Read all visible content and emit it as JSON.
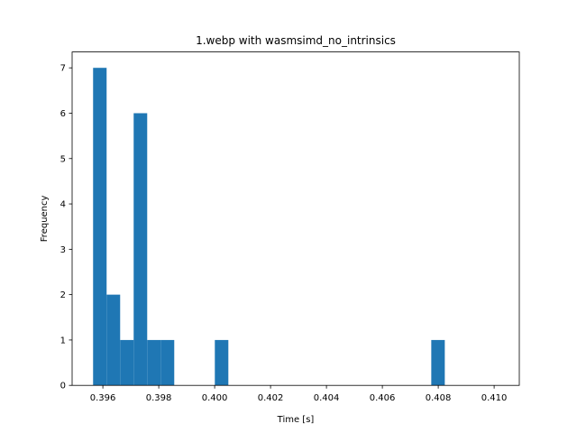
{
  "chart_data": {
    "type": "bar",
    "title": "1.webp with wasmsimd_no_intrinsics",
    "xlabel": "Time [s]",
    "ylabel": "Frequency",
    "bar_color": "#1f77b4",
    "xlim": [
      0.3949,
      0.4109
    ],
    "ylim": [
      0,
      7.35
    ],
    "xticks": [
      0.396,
      0.398,
      0.4,
      0.402,
      0.404,
      0.406,
      0.408,
      0.41
    ],
    "xtick_labels": [
      "0.396",
      "0.398",
      "0.400",
      "0.402",
      "0.404",
      "0.406",
      "0.408",
      "0.410"
    ],
    "yticks": [
      0,
      1,
      2,
      3,
      4,
      5,
      6,
      7
    ],
    "ytick_labels": [
      "0",
      "1",
      "2",
      "3",
      "4",
      "5",
      "6",
      "7"
    ],
    "bin_start": 0.39565,
    "bin_width": 0.000484,
    "values": [
      7,
      2,
      1,
      6,
      1,
      1,
      0,
      0,
      0,
      1,
      0,
      0,
      0,
      0,
      0,
      0,
      0,
      0,
      0,
      0,
      0,
      0,
      0,
      0,
      0,
      1
    ],
    "grid": false,
    "legend": "none"
  }
}
